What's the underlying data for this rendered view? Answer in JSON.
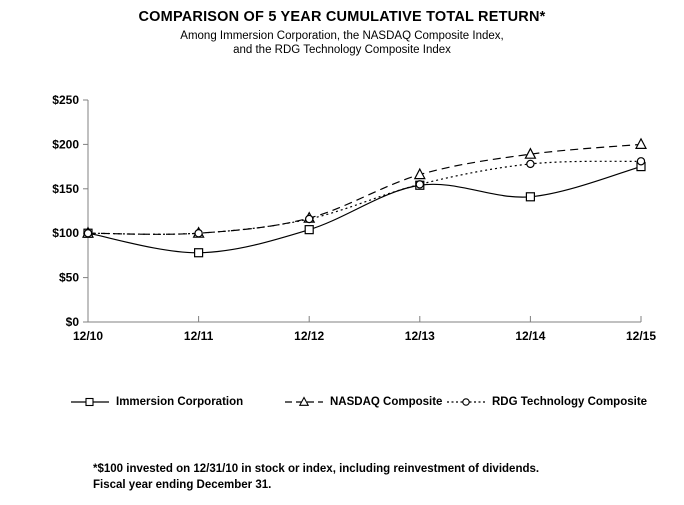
{
  "header": {
    "title": "COMPARISON OF 5 YEAR CUMULATIVE TOTAL RETURN*",
    "subtitle_line1": "Among Immersion Corporation, the NASDAQ  Composite Index,",
    "subtitle_line2": "and the RDG Technology Composite Index"
  },
  "chart_data": {
    "type": "line",
    "title": "COMPARISON OF 5 YEAR CUMULATIVE TOTAL RETURN*",
    "subtitle": "Among Immersion Corporation, the NASDAQ Composite Index, and the RDG Technology Composite Index",
    "categories": [
      "12/10",
      "12/11",
      "12/12",
      "12/13",
      "12/14",
      "12/15"
    ],
    "series": [
      {
        "name": "Immersion Corporation",
        "values": [
          100,
          78,
          104,
          154,
          141,
          175
        ],
        "line_style": "solid",
        "marker": "square",
        "color": "#000000"
      },
      {
        "name": "NASDAQ Composite",
        "values": [
          100,
          100,
          117,
          166,
          189,
          200
        ],
        "line_style": "dashed",
        "marker": "triangle",
        "color": "#000000"
      },
      {
        "name": "RDG Technology Composite",
        "values": [
          100,
          100,
          116,
          155,
          178,
          181
        ],
        "line_style": "dotted",
        "marker": "circle",
        "color": "#000000"
      }
    ],
    "xlabel": "",
    "ylabel": "",
    "ylim": [
      0,
      250
    ],
    "y_ticks": [
      "$250",
      "$200",
      "$150",
      "$100",
      "$50",
      "$0"
    ],
    "y_tick_values": [
      250,
      200,
      150,
      100,
      50,
      0
    ],
    "grid": false,
    "smooth": true,
    "legend_position": "bottom"
  },
  "footnote": {
    "line1": "*$100 invested on 12/31/10 in stock or index, including reinvestment of dividends.",
    "line2": "Fiscal year ending December 31."
  },
  "colors": {
    "axis": "#808080",
    "text": "#000000",
    "background": "#ffffff"
  }
}
